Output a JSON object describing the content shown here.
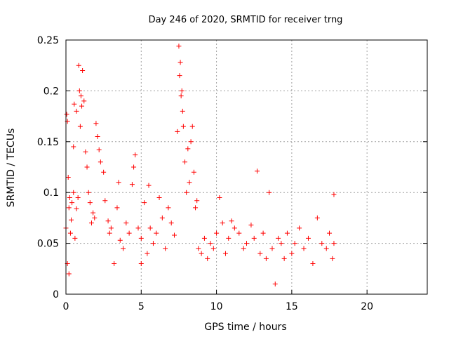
{
  "chart_data": {
    "type": "scatter",
    "title": "Day 246 of 2020, SRMTID for receiver trng",
    "xlabel": "GPS time / hours",
    "ylabel": "SRMTID / TECUs",
    "xlim": [
      0,
      24
    ],
    "ylim": [
      0,
      0.25
    ],
    "x_ticks": [
      0,
      5,
      10,
      15,
      20
    ],
    "x_tick_labels": [
      "0",
      "5",
      "10",
      "15",
      "20"
    ],
    "y_ticks": [
      0,
      0.05,
      0.1,
      0.15,
      0.2,
      0.25
    ],
    "y_tick_labels": [
      "0",
      "0.05",
      "0.1",
      "0.15",
      "0.2",
      "0.25"
    ],
    "grid": true,
    "marker": "+",
    "color": "#ff0000",
    "series": [
      {
        "name": "SRMTID",
        "points": [
          [
            0.0,
            0.065
          ],
          [
            0.05,
            0.177
          ],
          [
            0.1,
            0.17
          ],
          [
            0.1,
            0.03
          ],
          [
            0.15,
            0.115
          ],
          [
            0.2,
            0.02
          ],
          [
            0.2,
            0.085
          ],
          [
            0.25,
            0.095
          ],
          [
            0.3,
            0.06
          ],
          [
            0.35,
            0.073
          ],
          [
            0.4,
            0.09
          ],
          [
            0.5,
            0.1
          ],
          [
            0.5,
            0.145
          ],
          [
            0.55,
            0.187
          ],
          [
            0.6,
            0.055
          ],
          [
            0.7,
            0.18
          ],
          [
            0.7,
            0.084
          ],
          [
            0.8,
            0.095
          ],
          [
            0.85,
            0.225
          ],
          [
            0.9,
            0.2
          ],
          [
            0.95,
            0.165
          ],
          [
            1.0,
            0.195
          ],
          [
            1.05,
            0.185
          ],
          [
            1.1,
            0.22
          ],
          [
            1.2,
            0.19
          ],
          [
            1.3,
            0.14
          ],
          [
            1.4,
            0.125
          ],
          [
            1.5,
            0.1
          ],
          [
            1.6,
            0.09
          ],
          [
            1.7,
            0.07
          ],
          [
            1.8,
            0.08
          ],
          [
            1.9,
            0.075
          ],
          [
            2.0,
            0.168
          ],
          [
            2.1,
            0.155
          ],
          [
            2.2,
            0.142
          ],
          [
            2.3,
            0.13
          ],
          [
            2.5,
            0.12
          ],
          [
            2.6,
            0.092
          ],
          [
            2.8,
            0.072
          ],
          [
            2.9,
            0.06
          ],
          [
            3.0,
            0.065
          ],
          [
            3.2,
            0.03
          ],
          [
            3.4,
            0.085
          ],
          [
            3.5,
            0.11
          ],
          [
            3.6,
            0.053
          ],
          [
            3.8,
            0.045
          ],
          [
            4.0,
            0.07
          ],
          [
            4.2,
            0.06
          ],
          [
            4.4,
            0.108
          ],
          [
            4.5,
            0.125
          ],
          [
            4.6,
            0.137
          ],
          [
            4.8,
            0.065
          ],
          [
            5.0,
            0.055
          ],
          [
            5.0,
            0.03
          ],
          [
            5.2,
            0.09
          ],
          [
            5.4,
            0.04
          ],
          [
            5.5,
            0.107
          ],
          [
            5.6,
            0.065
          ],
          [
            5.8,
            0.05
          ],
          [
            6.0,
            0.06
          ],
          [
            6.2,
            0.095
          ],
          [
            6.4,
            0.075
          ],
          [
            6.6,
            0.045
          ],
          [
            6.8,
            0.085
          ],
          [
            7.0,
            0.07
          ],
          [
            7.2,
            0.058
          ],
          [
            7.4,
            0.16
          ],
          [
            7.5,
            0.244
          ],
          [
            7.55,
            0.215
          ],
          [
            7.6,
            0.228
          ],
          [
            7.65,
            0.195
          ],
          [
            7.7,
            0.2
          ],
          [
            7.75,
            0.18
          ],
          [
            7.8,
            0.165
          ],
          [
            7.9,
            0.13
          ],
          [
            8.0,
            0.1
          ],
          [
            8.1,
            0.143
          ],
          [
            8.2,
            0.11
          ],
          [
            8.3,
            0.15
          ],
          [
            8.4,
            0.165
          ],
          [
            8.5,
            0.12
          ],
          [
            8.6,
            0.085
          ],
          [
            8.7,
            0.092
          ],
          [
            8.8,
            0.045
          ],
          [
            9.0,
            0.04
          ],
          [
            9.2,
            0.055
          ],
          [
            9.4,
            0.035
          ],
          [
            9.6,
            0.05
          ],
          [
            9.8,
            0.045
          ],
          [
            10.0,
            0.06
          ],
          [
            10.2,
            0.095
          ],
          [
            10.4,
            0.07
          ],
          [
            10.6,
            0.04
          ],
          [
            10.8,
            0.055
          ],
          [
            11.0,
            0.072
          ],
          [
            11.2,
            0.065
          ],
          [
            11.5,
            0.06
          ],
          [
            11.8,
            0.045
          ],
          [
            12.0,
            0.05
          ],
          [
            12.3,
            0.068
          ],
          [
            12.5,
            0.055
          ],
          [
            12.7,
            0.121
          ],
          [
            12.9,
            0.04
          ],
          [
            13.1,
            0.06
          ],
          [
            13.3,
            0.035
          ],
          [
            13.5,
            0.1
          ],
          [
            13.7,
            0.045
          ],
          [
            13.9,
            0.01
          ],
          [
            14.1,
            0.055
          ],
          [
            14.3,
            0.05
          ],
          [
            14.5,
            0.035
          ],
          [
            14.7,
            0.06
          ],
          [
            15.0,
            0.04
          ],
          [
            15.2,
            0.05
          ],
          [
            15.5,
            0.065
          ],
          [
            15.8,
            0.045
          ],
          [
            16.1,
            0.055
          ],
          [
            16.4,
            0.03
          ],
          [
            16.7,
            0.075
          ],
          [
            17.0,
            0.05
          ],
          [
            17.3,
            0.045
          ],
          [
            17.5,
            0.06
          ],
          [
            17.7,
            0.035
          ],
          [
            17.8,
            0.098
          ],
          [
            17.8,
            0.05
          ]
        ]
      }
    ]
  }
}
